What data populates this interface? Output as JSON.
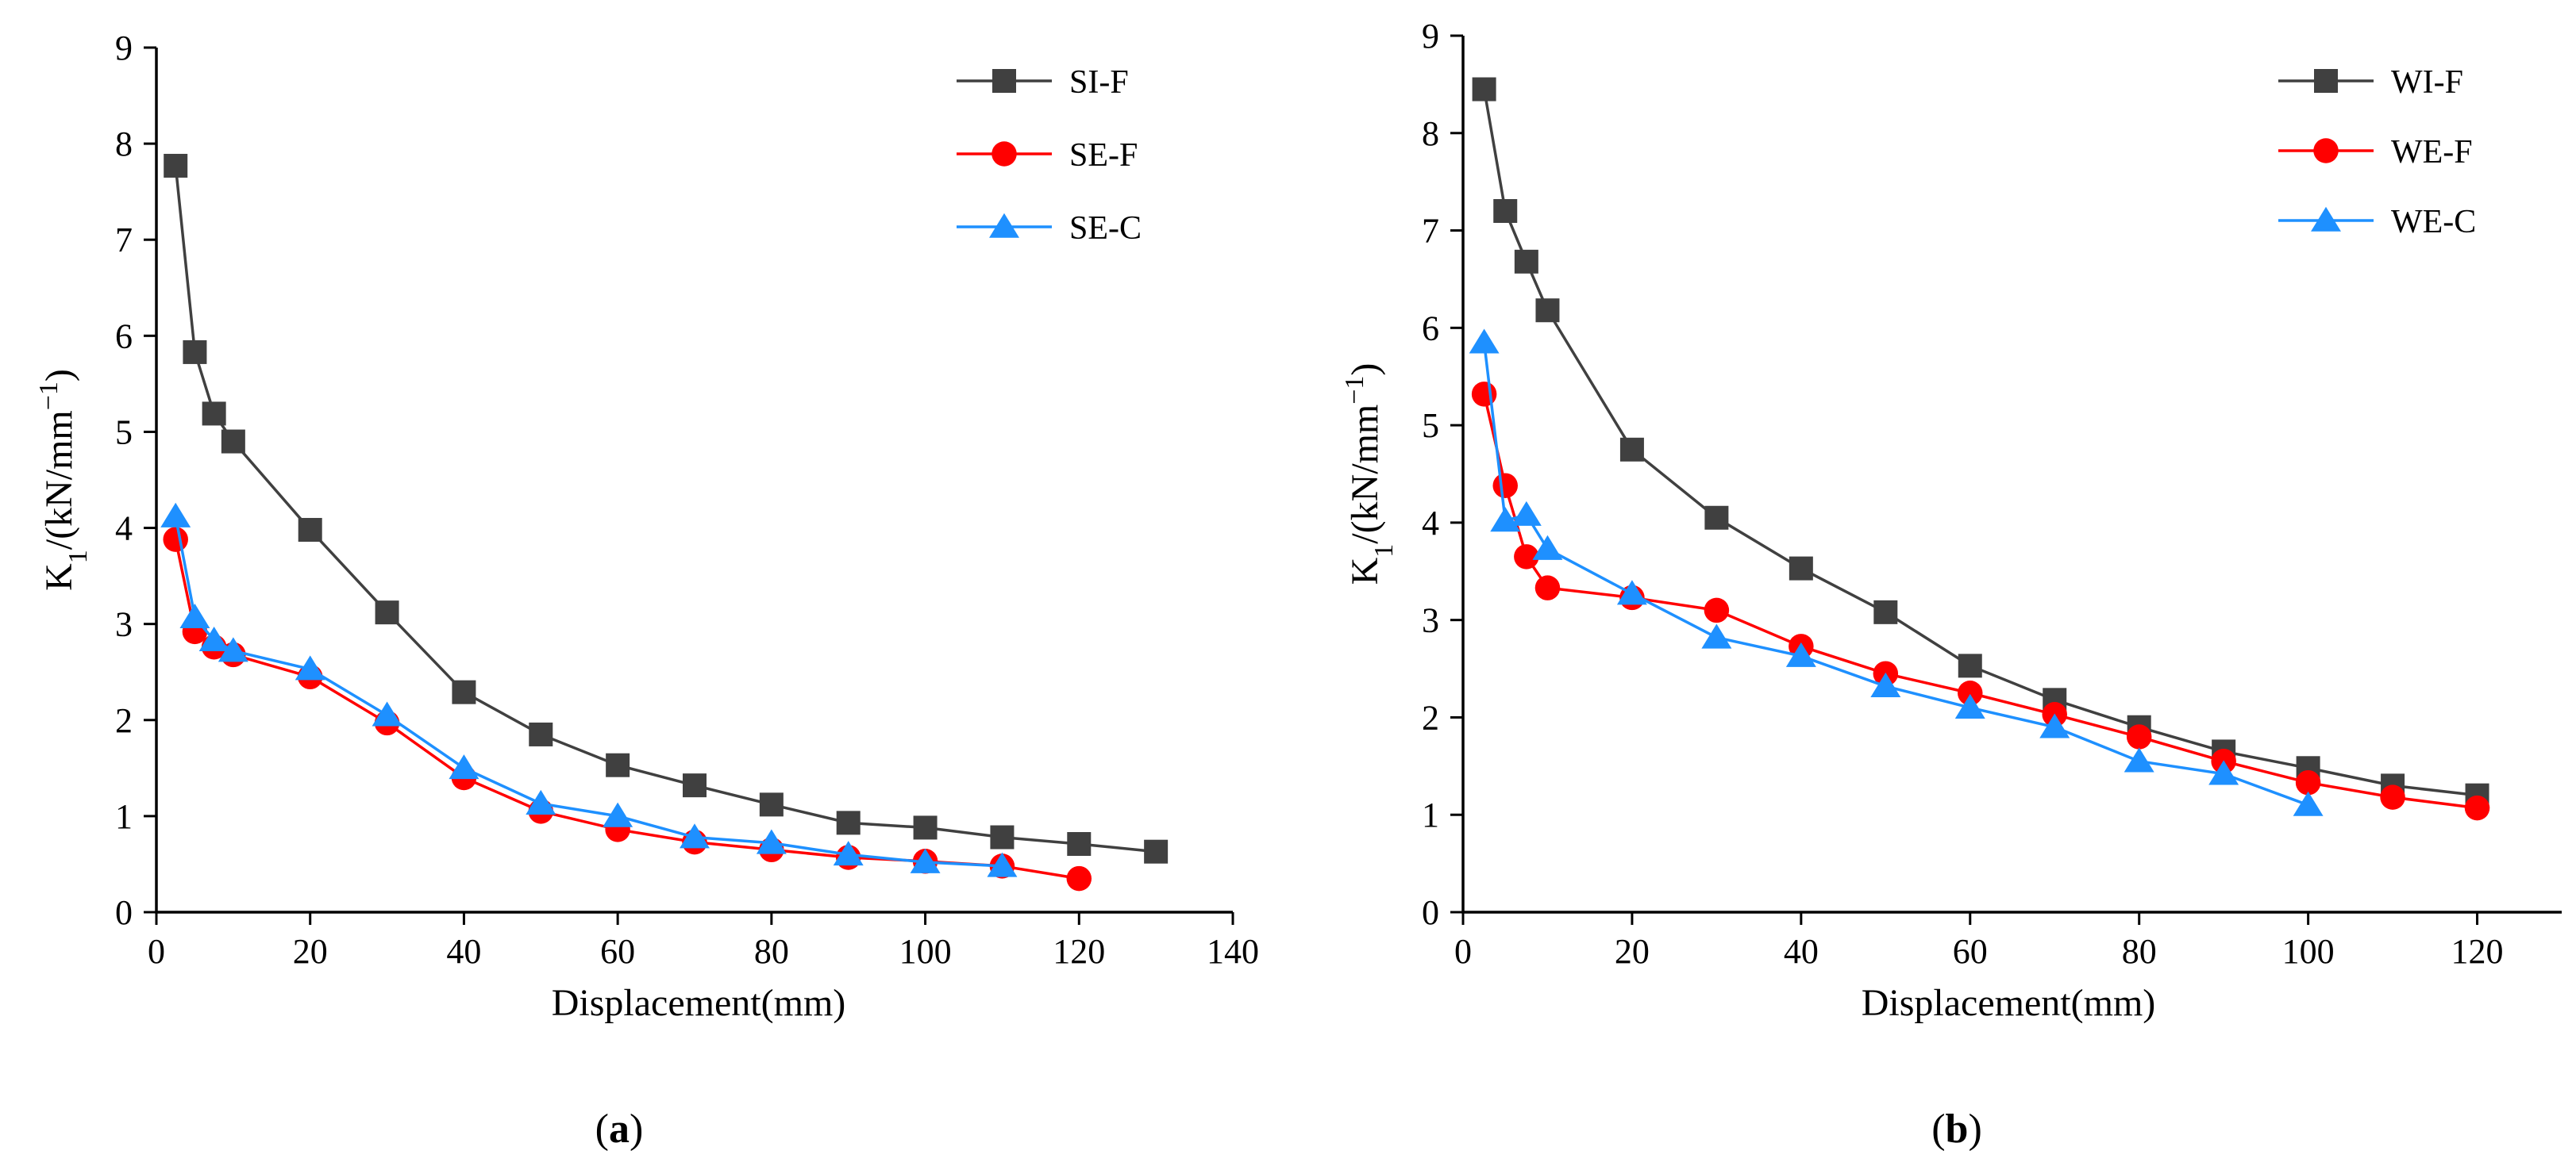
{
  "chart_data": [
    {
      "type": "line",
      "panel": "a",
      "xlabel": "Displacement(mm)",
      "ylabel": "K1/(kN/mm−1)",
      "xlim": [
        0,
        140
      ],
      "ylim": [
        0,
        9
      ],
      "xticks": [
        0,
        20,
        40,
        60,
        80,
        100,
        120,
        140
      ],
      "yticks": [
        0,
        1,
        2,
        3,
        4,
        5,
        6,
        7,
        8,
        9
      ],
      "grid": false,
      "legend_position": "top-right",
      "series": [
        {
          "name": "SI-F",
          "color": "#404040",
          "marker": "square",
          "x": [
            2.5,
            5,
            7.5,
            10,
            20,
            30,
            40,
            50,
            60,
            70,
            80,
            90,
            100,
            110,
            120,
            130
          ],
          "y": [
            7.77,
            5.83,
            5.19,
            4.9,
            3.98,
            3.12,
            2.29,
            1.85,
            1.53,
            1.32,
            1.12,
            0.93,
            0.88,
            0.78,
            0.71,
            0.63
          ]
        },
        {
          "name": "SE-F",
          "color": "#ff0000",
          "marker": "circle",
          "x": [
            2.5,
            5,
            7.5,
            10,
            20,
            30,
            40,
            50,
            60,
            70,
            80,
            90,
            100,
            110,
            120
          ],
          "y": [
            3.88,
            2.92,
            2.76,
            2.68,
            2.45,
            1.97,
            1.4,
            1.05,
            0.86,
            0.73,
            0.65,
            0.57,
            0.53,
            0.48,
            0.35
          ]
        },
        {
          "name": "SE-C",
          "color": "#1e90ff",
          "marker": "triangle",
          "x": [
            2.5,
            5,
            7.5,
            10,
            20,
            30,
            40,
            50,
            60,
            70,
            80,
            90,
            100,
            110
          ],
          "y": [
            4.12,
            3.07,
            2.83,
            2.72,
            2.53,
            2.05,
            1.5,
            1.13,
            1.0,
            0.78,
            0.72,
            0.6,
            0.52,
            0.48
          ]
        }
      ]
    },
    {
      "type": "line",
      "panel": "b",
      "xlabel": "Displacement(mm)",
      "ylabel": "K1/(kN/mm−1)",
      "xlim": [
        0,
        130
      ],
      "ylim": [
        0,
        9
      ],
      "xticks": [
        0,
        20,
        40,
        60,
        80,
        100,
        120
      ],
      "yticks": [
        0,
        1,
        2,
        3,
        4,
        5,
        6,
        7,
        8,
        9
      ],
      "grid": false,
      "legend_position": "top-right",
      "series": [
        {
          "name": "WI-F",
          "color": "#404040",
          "marker": "square",
          "x": [
            2.5,
            5,
            7.5,
            10,
            20,
            30,
            40,
            50,
            60,
            70,
            80,
            90,
            100,
            110,
            120
          ],
          "y": [
            8.45,
            7.2,
            6.68,
            6.18,
            4.75,
            4.05,
            3.53,
            3.08,
            2.53,
            2.18,
            1.9,
            1.65,
            1.48,
            1.3,
            1.2
          ]
        },
        {
          "name": "WE-F",
          "color": "#ff0000",
          "marker": "circle",
          "x": [
            2.5,
            5,
            7.5,
            10,
            20,
            30,
            40,
            50,
            60,
            70,
            80,
            90,
            100,
            110,
            120
          ],
          "y": [
            5.32,
            4.38,
            3.65,
            3.33,
            3.23,
            3.1,
            2.73,
            2.45,
            2.25,
            2.03,
            1.8,
            1.55,
            1.33,
            1.18,
            1.07
          ]
        },
        {
          "name": "WE-C",
          "color": "#1e90ff",
          "marker": "triangle",
          "x": [
            2.5,
            5,
            7.5,
            10,
            20,
            30,
            40,
            50,
            60,
            70,
            80,
            90,
            100
          ],
          "y": [
            5.85,
            4.02,
            4.08,
            3.73,
            3.27,
            2.82,
            2.63,
            2.32,
            2.1,
            1.9,
            1.55,
            1.42,
            1.1
          ]
        }
      ]
    }
  ],
  "labels": {
    "ylabel_main": "K",
    "ylabel_sub": "1",
    "ylabel_unit": "/(kN/mm",
    "ylabel_exp": "−1",
    "ylabel_close": ")",
    "panel_a_open": "(",
    "panel_a_letter": "a",
    "panel_a_close": ")",
    "panel_b_open": "(",
    "panel_b_letter": "b",
    "panel_b_close": ")"
  }
}
